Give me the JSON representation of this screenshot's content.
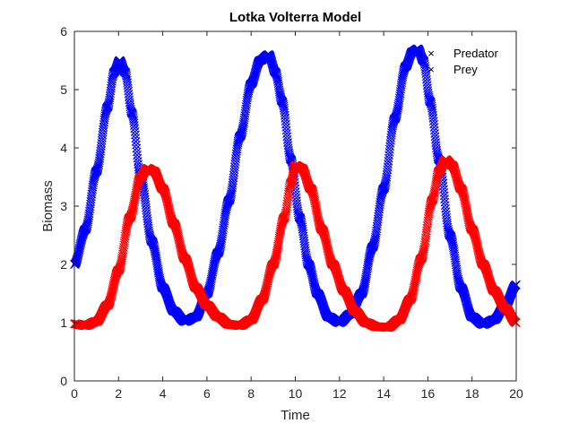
{
  "chart_data": {
    "type": "scatter",
    "title": "Lotka Volterra Model",
    "xlabel": "Time",
    "ylabel": "Biomass",
    "xlim": [
      0,
      20
    ],
    "ylim": [
      0,
      6
    ],
    "xticks": [
      "0",
      "2",
      "4",
      "6",
      "8",
      "10",
      "12",
      "14",
      "16",
      "18",
      "20"
    ],
    "yticks": [
      "0",
      "1",
      "2",
      "3",
      "4",
      "5",
      "6"
    ],
    "grid": false,
    "legend_position": "top-right",
    "marker": "×",
    "series": [
      {
        "name": "Predator",
        "color": "#0000ff",
        "x": [
          0,
          0.5,
          1.0,
          1.5,
          1.8,
          2.05,
          2.3,
          2.6,
          3.0,
          3.5,
          4.0,
          4.5,
          5.0,
          5.5,
          6.0,
          6.5,
          7.0,
          7.5,
          8.0,
          8.4,
          8.8,
          9.1,
          9.4,
          9.8,
          10.2,
          10.6,
          11.0,
          11.5,
          12.0,
          12.5,
          13.0,
          13.5,
          14.0,
          14.5,
          15.0,
          15.3,
          15.55,
          15.8,
          16.1,
          16.5,
          17.0,
          17.5,
          18.0,
          18.5,
          19.0,
          19.5,
          20.0
        ],
        "values": [
          2.0,
          2.6,
          3.6,
          4.7,
          5.3,
          5.5,
          5.3,
          4.6,
          3.5,
          2.4,
          1.6,
          1.2,
          1.02,
          1.1,
          1.5,
          2.2,
          3.1,
          4.2,
          5.1,
          5.5,
          5.6,
          5.3,
          4.8,
          3.8,
          2.8,
          2.0,
          1.5,
          1.1,
          1.0,
          1.15,
          1.5,
          2.3,
          3.3,
          4.5,
          5.4,
          5.65,
          5.7,
          5.5,
          4.8,
          3.8,
          2.5,
          1.6,
          1.1,
          0.97,
          1.05,
          1.3,
          1.65
        ]
      },
      {
        "name": "Prey",
        "color": "#ff0000",
        "x": [
          0,
          0.5,
          1.0,
          1.5,
          2.0,
          2.5,
          3.0,
          3.3,
          3.6,
          4.0,
          4.5,
          5.0,
          5.5,
          6.0,
          6.5,
          7.0,
          7.5,
          8.0,
          8.5,
          9.0,
          9.5,
          9.8,
          10.0,
          10.3,
          10.7,
          11.2,
          11.7,
          12.2,
          12.7,
          13.2,
          13.7,
          14.2,
          14.7,
          15.2,
          15.7,
          16.2,
          16.5,
          16.8,
          17.1,
          17.5,
          18.0,
          18.5,
          19.0,
          19.5,
          20.0
        ],
        "values": [
          0.98,
          0.95,
          1.02,
          1.3,
          1.9,
          2.8,
          3.5,
          3.65,
          3.6,
          3.3,
          2.7,
          2.1,
          1.6,
          1.3,
          1.1,
          0.97,
          0.95,
          1.05,
          1.4,
          2.0,
          2.8,
          3.4,
          3.7,
          3.65,
          3.3,
          2.6,
          2.0,
          1.55,
          1.2,
          1.0,
          0.93,
          0.92,
          1.05,
          1.4,
          2.1,
          3.1,
          3.6,
          3.8,
          3.7,
          3.3,
          2.6,
          2.0,
          1.55,
          1.25,
          1.0
        ]
      }
    ]
  }
}
